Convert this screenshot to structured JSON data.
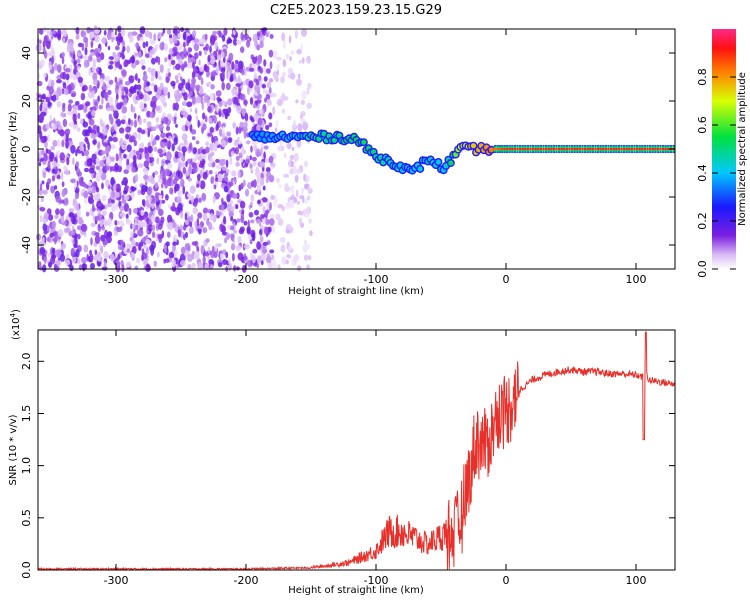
{
  "title": "C2E5.2023.159.23.15.G29",
  "colors": {
    "snr_line": "#e8302a",
    "signal_track": "#ff2a2a",
    "noise_violet": "#7a1fe0",
    "axis": "#000000"
  },
  "chart_data": [
    {
      "type": "heatmap",
      "name": "spectrogram",
      "xlabel": "Height of straight line (km)",
      "ylabel": "Frequency (Hz)",
      "xlim": [
        -360,
        130
      ],
      "ylim": [
        -50,
        50
      ],
      "xticks": [
        -300,
        -200,
        -100,
        0,
        100
      ],
      "yticks": [
        -40,
        -20,
        0,
        20,
        40
      ],
      "grid": false,
      "colorbar": {
        "label": "Normalized spectral amplitude",
        "range": [
          0,
          1
        ],
        "ticks": [
          "0.0",
          "0.2",
          "0.4",
          "0.6",
          "0.8"
        ],
        "colormap": "rainbow (white → violet → blue → cyan → green → yellow → red → magenta)"
      },
      "features": {
        "noise_region_km": [
          -360,
          -150
        ],
        "dense_noise_km": [
          -360,
          -180
        ],
        "signal_track": [
          {
            "x": -195,
            "y": 5,
            "amp": 0.35
          },
          {
            "x": -170,
            "y": 5,
            "amp": 0.4
          },
          {
            "x": -150,
            "y": 5,
            "amp": 0.5
          },
          {
            "x": -130,
            "y": 5,
            "amp": 0.5
          },
          {
            "x": -115,
            "y": 4,
            "amp": 0.55
          },
          {
            "x": -100,
            "y": -3,
            "amp": 0.5
          },
          {
            "x": -85,
            "y": -6,
            "amp": 0.45
          },
          {
            "x": -72,
            "y": -10,
            "amp": 0.4
          },
          {
            "x": -60,
            "y": -4,
            "amp": 0.45
          },
          {
            "x": -48,
            "y": -8,
            "amp": 0.4
          },
          {
            "x": -35,
            "y": 0,
            "amp": 0.7
          },
          {
            "x": -15,
            "y": 0,
            "amp": 0.8
          },
          {
            "x": 0,
            "y": 0,
            "amp": 0.9
          },
          {
            "x": 50,
            "y": 0,
            "amp": 0.9
          },
          {
            "x": 130,
            "y": 0,
            "amp": 0.9
          }
        ]
      }
    },
    {
      "type": "line",
      "name": "snr",
      "xlabel": "Height of straight line (km)",
      "ylabel": "SNR (10 * v/v)",
      "multiplier_label": "(x10",
      "multiplier_exp": "4",
      "multiplier_close": ")",
      "xlim": [
        -360,
        130
      ],
      "ylim": [
        0,
        2.3
      ],
      "xticks": [
        -300,
        -200,
        -100,
        0,
        100
      ],
      "yticks": [
        "0.0",
        "0.5",
        "1.0",
        "1.5",
        "2.0"
      ],
      "grid": false,
      "series": [
        {
          "x": [
            -360,
            -300,
            -200,
            -160,
            -150,
            -140,
            -120,
            -100,
            -90,
            -80,
            -60,
            -45,
            -35,
            -30,
            -25,
            -22,
            -20,
            -15,
            -10,
            -5,
            0,
            10,
            20,
            30,
            40,
            50,
            60,
            70,
            80,
            90,
            100,
            105,
            108,
            110,
            120,
            130
          ],
          "y": [
            0.01,
            0.01,
            0.01,
            0.02,
            0.02,
            0.03,
            0.06,
            0.15,
            0.3,
            0.3,
            0.2,
            0.3,
            0.45,
            0.8,
            1.1,
            1.3,
            1.2,
            1.2,
            1.35,
            1.5,
            1.55,
            1.72,
            1.82,
            1.87,
            1.9,
            1.92,
            1.9,
            1.9,
            1.88,
            1.88,
            1.87,
            1.85,
            1.88,
            1.82,
            1.8,
            1.78
          ]
        }
      ]
    }
  ]
}
